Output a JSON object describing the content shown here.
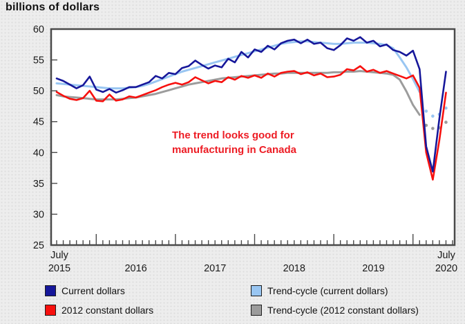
{
  "page": {
    "title": "billions of dollars"
  },
  "annotation": {
    "lines": [
      "The trend looks good for",
      "manufacturing in Canada"
    ],
    "color": "#ed1c24"
  },
  "axes": {
    "y_tick_labels": [
      "60",
      "55",
      "50",
      "45",
      "40",
      "35",
      "30",
      "25"
    ],
    "x_first_label": {
      "line1": "July",
      "line2": "2015"
    },
    "x_last_label": {
      "line1": "July",
      "line2": "2020"
    },
    "x_year_labels": [
      "2016",
      "2017",
      "2018",
      "2019"
    ]
  },
  "legend": {
    "items": [
      {
        "id": "current",
        "label": "Current dollars",
        "color": "#16179a"
      },
      {
        "id": "constant",
        "label": "2012 constant dollars",
        "color": "#f7100e"
      },
      {
        "id": "trend_current",
        "label": "Trend-cycle (current dollars)",
        "color": "#99c6f2"
      },
      {
        "id": "trend_constant",
        "label": "Trend-cycle (2012 constant dollars)",
        "color": "#9c9c9c"
      }
    ]
  },
  "chart_data": {
    "type": "line",
    "title": "billions of dollars",
    "ylabel": "billions of dollars",
    "ylim": [
      25,
      60
    ],
    "y_tick_step": 5,
    "x_unit": "month",
    "x_range": [
      "July 2015",
      "July 2020"
    ],
    "x_total_months": 60,
    "grid": false,
    "legend_position": "bottom",
    "series": [
      {
        "id": "trend_current",
        "name": "Trend-cycle (current dollars)",
        "color": "#99c6f2",
        "line_width": 3,
        "start_month": 0,
        "values": [
          51.2,
          51.1,
          51.0,
          50.9,
          50.8,
          50.7,
          50.6,
          50.5,
          50.4,
          50.4,
          50.4,
          50.5,
          50.6,
          50.8,
          51.1,
          51.5,
          51.9,
          52.3,
          52.7,
          53.1,
          53.4,
          53.7,
          54.0,
          54.3,
          54.6,
          54.9,
          55.2,
          55.5,
          55.8,
          56.1,
          56.4,
          56.7,
          57.0,
          57.3,
          57.6,
          57.8,
          57.9,
          58.0,
          58.0,
          57.9,
          57.8,
          57.7,
          57.6,
          57.6,
          57.7,
          57.8,
          57.8,
          57.8,
          57.7,
          57.6,
          57.4,
          56.9,
          55.4,
          53.8,
          51.9,
          49.8
        ],
        "projection_dots_start_month": 56,
        "projection_dots": [
          46.7,
          45.9,
          46.2,
          47.2
        ]
      },
      {
        "id": "trend_constant",
        "name": "Trend-cycle (2012 constant dollars)",
        "color": "#9c9c9c",
        "line_width": 3,
        "start_month": 0,
        "values": [
          49.3,
          49.1,
          49.0,
          48.9,
          48.8,
          48.7,
          48.6,
          48.6,
          48.6,
          48.6,
          48.7,
          48.8,
          48.9,
          49.1,
          49.3,
          49.5,
          49.8,
          50.1,
          50.4,
          50.7,
          51.0,
          51.2,
          51.4,
          51.6,
          51.8,
          52.0,
          52.1,
          52.2,
          52.3,
          52.4,
          52.5,
          52.6,
          52.7,
          52.8,
          52.8,
          52.9,
          52.9,
          52.9,
          52.9,
          52.9,
          52.9,
          52.9,
          53.0,
          53.0,
          53.1,
          53.1,
          53.2,
          53.1,
          53.0,
          52.9,
          52.8,
          52.6,
          51.8,
          49.9,
          47.7,
          46.1
        ],
        "projection_dots_start_month": 56,
        "projection_dots": [
          44.4,
          43.9,
          44.0,
          44.9
        ]
      },
      {
        "id": "constant",
        "name": "2012 constant dollars",
        "color": "#f7100e",
        "line_width": 2.6,
        "start_month": 0,
        "values": [
          49.8,
          49.2,
          48.7,
          48.5,
          48.8,
          50.0,
          48.4,
          48.3,
          49.4,
          48.4,
          48.6,
          49.1,
          48.9,
          49.3,
          49.7,
          50.1,
          50.6,
          51.0,
          51.3,
          51.0,
          51.4,
          52.2,
          51.7,
          51.2,
          51.6,
          51.4,
          52.2,
          51.8,
          52.4,
          52.1,
          52.5,
          52.1,
          52.8,
          52.3,
          52.9,
          53.1,
          53.2,
          52.7,
          53.0,
          52.5,
          52.8,
          52.2,
          52.3,
          52.6,
          53.5,
          53.3,
          54.0,
          53.1,
          53.4,
          52.9,
          53.2,
          52.8,
          52.4,
          52.0,
          52.5,
          50.5,
          40.0,
          35.6,
          42.0,
          49.7
        ]
      },
      {
        "id": "current",
        "name": "Current dollars",
        "color": "#16179a",
        "line_width": 2.6,
        "start_month": 0,
        "values": [
          52.0,
          51.6,
          51.0,
          50.4,
          50.9,
          52.3,
          50.2,
          49.8,
          50.3,
          49.7,
          50.1,
          50.6,
          50.6,
          51.0,
          51.4,
          52.4,
          52.0,
          52.9,
          52.7,
          53.7,
          54.0,
          54.9,
          54.2,
          53.6,
          54.1,
          53.8,
          55.2,
          54.6,
          56.3,
          55.4,
          56.7,
          56.3,
          57.3,
          56.7,
          57.7,
          58.1,
          58.3,
          57.7,
          58.3,
          57.6,
          57.8,
          56.9,
          56.6,
          57.4,
          58.5,
          58.1,
          58.7,
          57.8,
          58.1,
          57.2,
          57.5,
          56.6,
          56.3,
          55.7,
          56.5,
          53.5,
          41.0,
          36.9,
          45.5,
          53.1
        ]
      }
    ]
  }
}
